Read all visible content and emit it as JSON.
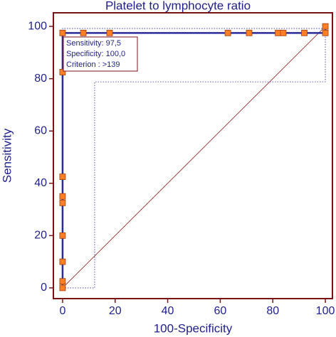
{
  "chart_data": {
    "type": "line",
    "title": "Platelet to lymphocyte ratio",
    "x_label": "100-Specificity",
    "y_label": "Sensitivity",
    "xlim": [
      -3.5,
      102.7
    ],
    "ylim": [
      -4.1,
      105.2
    ],
    "xticks": [
      0,
      20,
      40,
      60,
      80,
      100
    ],
    "yticks": [
      0,
      20,
      40,
      60,
      80,
      100
    ],
    "frame_color": "#7a1414",
    "series": [
      {
        "color": "#2b2b9a",
        "width": 2.5,
        "markers": true,
        "marker_color": "#ff7f27",
        "x": [
          0,
          0,
          0,
          0,
          0,
          0,
          0,
          0,
          0,
          7.9,
          17.9,
          62.9,
          71,
          82,
          84,
          92,
          100,
          100
        ],
        "values": [
          0,
          2.5,
          10,
          20,
          32.5,
          35,
          42.5,
          82.5,
          97.5,
          97.5,
          97.5,
          97.5,
          97.5,
          97.5,
          97.5,
          97.5,
          97.5,
          100
        ]
      },
      {
        "color": "#2b2b9a",
        "width": 0.8,
        "dotted": true,
        "x": [
          0,
          12.2,
          12.2,
          100,
          100
        ],
        "values": [
          0,
          0,
          78.8,
          78.8,
          100
        ]
      },
      {
        "color": "#2b2b9a",
        "width": 0.8,
        "dotted": true,
        "x": [
          0,
          0,
          100,
          100
        ],
        "values": [
          0,
          99.2,
          99.2,
          100
        ]
      },
      {
        "color": "#8b1a1a",
        "width": 0.8,
        "x": [
          0,
          100
        ],
        "values": [
          0,
          100
        ]
      }
    ],
    "annotation": [
      "Sensitivity: 97,5",
      "Specificity: 100,0",
      "Criterion : >139"
    ]
  }
}
